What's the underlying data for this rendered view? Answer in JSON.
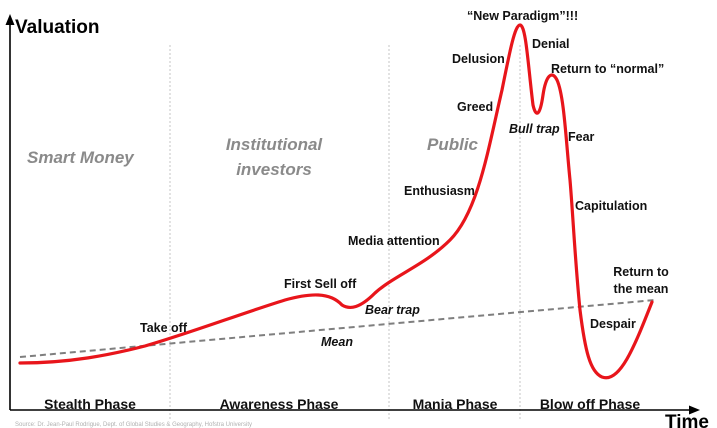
{
  "axes": {
    "y_label": "Valuation",
    "x_label": "Time"
  },
  "phases": [
    "Stealth Phase",
    "Awareness Phase",
    "Mania Phase",
    "Blow off Phase"
  ],
  "groups": {
    "smart_money": "Smart Money",
    "institutional_line1": "Institutional",
    "institutional_line2": "investors",
    "public": "Public"
  },
  "annotations": {
    "take_off": "Take off",
    "first_sell_off": "First Sell off",
    "bear_trap": "Bear trap",
    "media_attention": "Media attention",
    "enthusiasm": "Enthusiasm",
    "greed": "Greed",
    "delusion": "Delusion",
    "new_paradigm": "“New Paradigm”!!!",
    "denial": "Denial",
    "return_to_normal": "Return to “normal”",
    "bull_trap": "Bull trap",
    "fear": "Fear",
    "capitulation": "Capitulation",
    "despair": "Despair",
    "return_to_mean_line1": "Return to",
    "return_to_mean_line2": "the mean",
    "mean": "Mean"
  },
  "footnote": "Source: Dr. Jean-Paul Rodrigue, Dept. of Global Studies & Geography, Hofstra University",
  "colors": {
    "curve": "#e8151b",
    "mean_line": "#7f7f7f",
    "divider": "#c4c4c4",
    "axis": "#000000"
  }
}
